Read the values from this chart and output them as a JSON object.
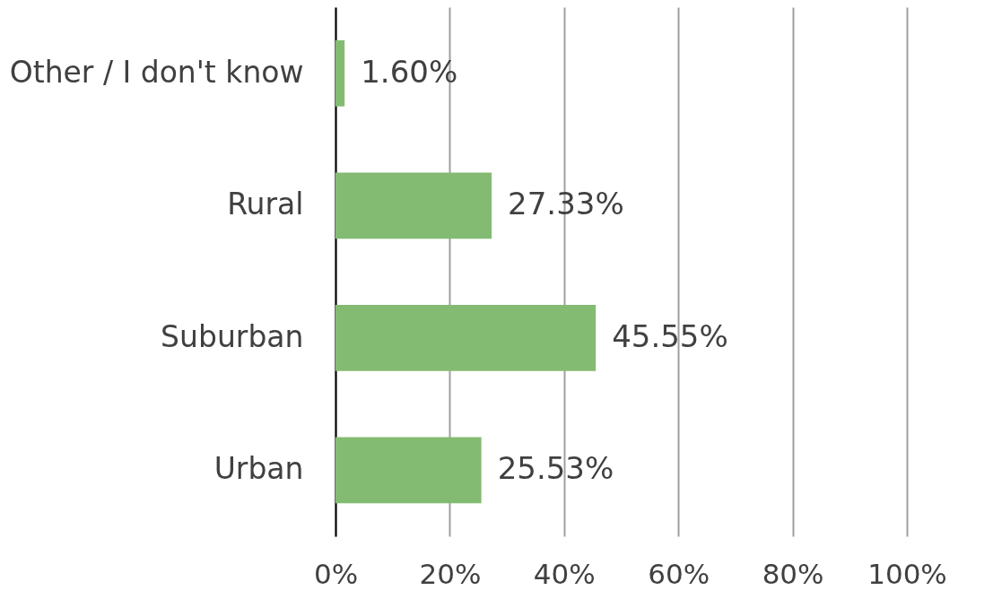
{
  "chart_data": {
    "type": "bar",
    "orientation": "horizontal",
    "categories": [
      "Other / I don't know",
      "Rural",
      "Suburban",
      "Urban"
    ],
    "values": [
      1.6,
      27.33,
      45.55,
      25.53
    ],
    "value_labels": [
      "1.60%",
      "27.33%",
      "45.55%",
      "25.53%"
    ],
    "color": "#83bb72",
    "xlim": [
      0,
      100
    ],
    "xticks": [
      {
        "value": 0,
        "label": "0%"
      },
      {
        "value": 20,
        "label": "20%"
      },
      {
        "value": 40,
        "label": "40%"
      },
      {
        "value": 60,
        "label": "60%"
      },
      {
        "value": 80,
        "label": "80%"
      },
      {
        "value": 100,
        "label": "100%"
      }
    ],
    "grid": "x"
  }
}
